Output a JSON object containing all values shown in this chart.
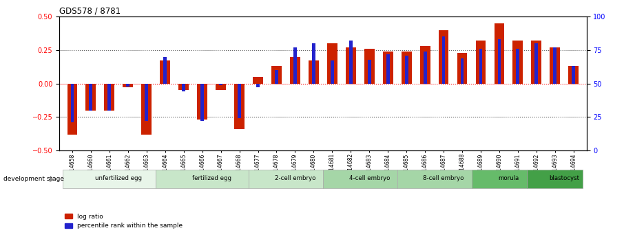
{
  "title": "GDS578 / 8781",
  "samples": [
    "GSM14658",
    "GSM14660",
    "GSM14661",
    "GSM14662",
    "GSM14663",
    "GSM14664",
    "GSM14665",
    "GSM14666",
    "GSM14667",
    "GSM14668",
    "GSM14677",
    "GSM14678",
    "GSM14679",
    "GSM14680",
    "GSM14681",
    "GSM14682",
    "GSM14683",
    "GSM14684",
    "GSM14685",
    "GSM14686",
    "GSM14687",
    "GSM14688",
    "GSM14689",
    "GSM14690",
    "GSM14691",
    "GSM14692",
    "GSM14693",
    "GSM14694"
  ],
  "log_ratio": [
    -0.38,
    -0.2,
    -0.2,
    -0.03,
    -0.38,
    0.17,
    -0.05,
    -0.27,
    -0.05,
    -0.34,
    0.05,
    0.13,
    0.2,
    0.17,
    0.3,
    0.27,
    0.26,
    0.24,
    0.24,
    0.28,
    0.4,
    0.23,
    0.32,
    0.45,
    0.32,
    0.32,
    0.27,
    0.13
  ],
  "percentile": [
    21,
    30,
    30,
    48,
    22,
    70,
    44,
    22,
    49,
    24,
    47,
    60,
    77,
    80,
    67,
    82,
    68,
    72,
    71,
    74,
    85,
    69,
    76,
    83,
    76,
    80,
    77,
    63
  ],
  "stages": [
    {
      "label": "unfertilized egg",
      "start": 0,
      "end": 5
    },
    {
      "label": "fertilized egg",
      "start": 5,
      "end": 10
    },
    {
      "label": "2-cell embryo",
      "start": 10,
      "end": 14
    },
    {
      "label": "4-cell embryo",
      "start": 14,
      "end": 18
    },
    {
      "label": "8-cell embryo",
      "start": 18,
      "end": 22
    },
    {
      "label": "morula",
      "start": 22,
      "end": 25
    },
    {
      "label": "blastocyst",
      "start": 25,
      "end": 28
    }
  ],
  "stage_colors": [
    "#e8f5e9",
    "#c8e6c9",
    "#c8e6c9",
    "#a5d6a7",
    "#a5d6a7",
    "#66bb6a",
    "#43a047"
  ],
  "bar_color_red": "#cc2200",
  "bar_color_blue": "#2222cc",
  "ylim_left": [
    -0.5,
    0.5
  ],
  "ylim_right": [
    0,
    100
  ],
  "yticks_left": [
    -0.5,
    -0.25,
    0.0,
    0.25,
    0.5
  ],
  "yticks_right": [
    0,
    25,
    50,
    75,
    100
  ],
  "hlines_dotted": [
    -0.25,
    0.25
  ],
  "hline_red": 0.0,
  "dev_stage_label": "development stage"
}
